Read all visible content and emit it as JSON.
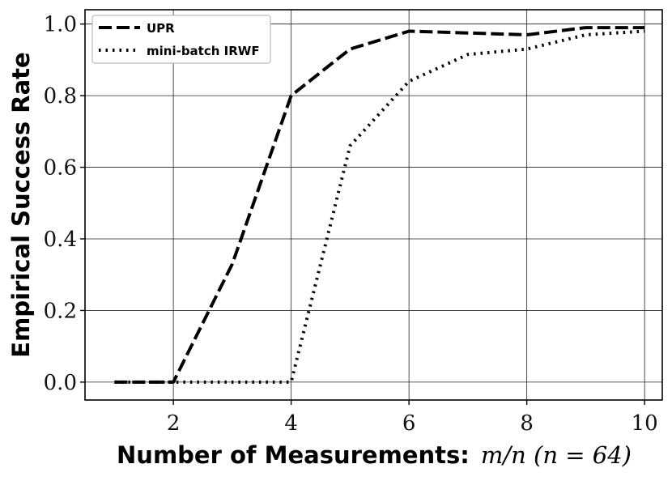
{
  "chart_data": {
    "type": "line",
    "xlabel": "Number of Measurements:",
    "xlabel_math": "m/n (n = 64)",
    "ylabel": "Empirical Success Rate",
    "xlim": [
      0.5,
      10.3
    ],
    "ylim": [
      -0.05,
      1.04
    ],
    "x_ticks": [
      2,
      4,
      6,
      8,
      10
    ],
    "y_ticks": [
      0.0,
      0.2,
      0.4,
      0.6,
      0.8,
      1.0
    ],
    "x_tick_labels": [
      "2",
      "4",
      "6",
      "8",
      "10"
    ],
    "y_tick_labels": [
      "0.0",
      "0.2",
      "0.4",
      "0.6",
      "0.8",
      "1.0"
    ],
    "grid": true,
    "legend_position": "top-left",
    "series": [
      {
        "name": "UPR",
        "style": "dashed",
        "x": [
          1,
          2,
          3,
          4,
          5,
          6,
          7,
          8,
          9,
          10
        ],
        "y": [
          0.0,
          0.0,
          0.33,
          0.8,
          0.93,
          0.98,
          0.975,
          0.97,
          0.99,
          0.99
        ]
      },
      {
        "name": "mini-batch IRWF",
        "style": "dotted",
        "x": [
          1,
          2,
          3,
          4,
          5,
          6,
          7,
          8,
          9,
          10
        ],
        "y": [
          0.0,
          0.0,
          0.0,
          0.0,
          0.66,
          0.84,
          0.915,
          0.93,
          0.97,
          0.98
        ]
      }
    ],
    "line_color": "#000000",
    "grid_color": "#222222"
  }
}
